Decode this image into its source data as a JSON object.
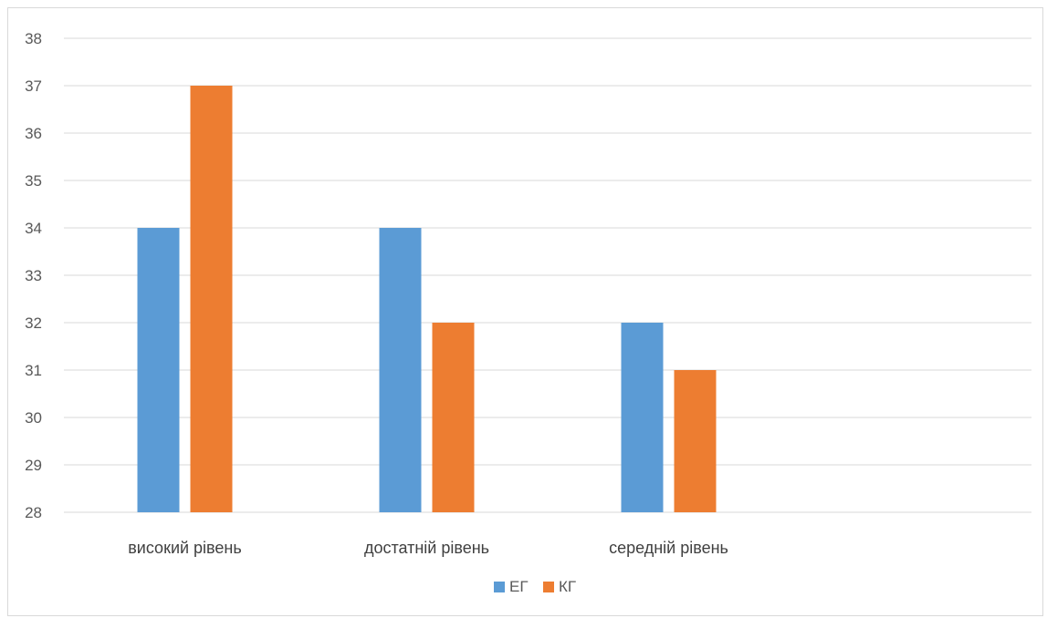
{
  "chart_data": {
    "type": "bar",
    "title": "",
    "xlabel": "",
    "ylabel": "",
    "categories": [
      "високий рівень",
      "достатній рівень",
      "середній рівень",
      ""
    ],
    "series": [
      {
        "name": "ЕГ",
        "color": "#5b9bd5",
        "values": [
          34,
          34,
          32,
          null
        ]
      },
      {
        "name": "КГ",
        "color": "#ed7d31",
        "values": [
          37,
          32,
          31,
          null
        ]
      }
    ],
    "ylim": [
      28,
      38
    ],
    "yticks": [
      28,
      29,
      30,
      31,
      32,
      33,
      34,
      35,
      36,
      37,
      38
    ],
    "grid": true,
    "gridColor": "#d9d9d9",
    "legend_position": "bottom"
  }
}
